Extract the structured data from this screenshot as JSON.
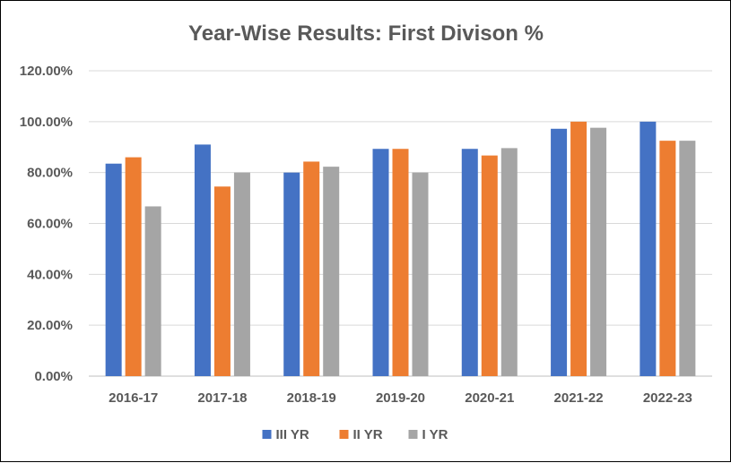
{
  "chart_data": {
    "type": "bar",
    "title": "Year-Wise Results: First Divison %",
    "xlabel": "",
    "ylabel": "",
    "categories": [
      "2016-17",
      "2017-18",
      "2018-19",
      "2019-20",
      "2020-21",
      "2021-22",
      "2022-23"
    ],
    "series": [
      {
        "name": "III YR",
        "color": "#4472C4",
        "values": [
          83.5,
          91.0,
          80.0,
          89.3,
          89.3,
          97.2,
          100.0
        ]
      },
      {
        "name": "II YR",
        "color": "#ED7D31",
        "values": [
          86.0,
          74.5,
          84.3,
          89.3,
          86.7,
          100.0,
          92.5
        ]
      },
      {
        "name": "I YR",
        "color": "#A5A5A5",
        "values": [
          66.7,
          80.0,
          82.3,
          80.0,
          89.6,
          97.6,
          92.5
        ]
      }
    ],
    "ylim": [
      0,
      120
    ],
    "yticks": [
      "0.00%",
      "20.00%",
      "40.00%",
      "60.00%",
      "80.00%",
      "100.00%",
      "120.00%"
    ],
    "grid": true,
    "legend_position": "bottom"
  }
}
